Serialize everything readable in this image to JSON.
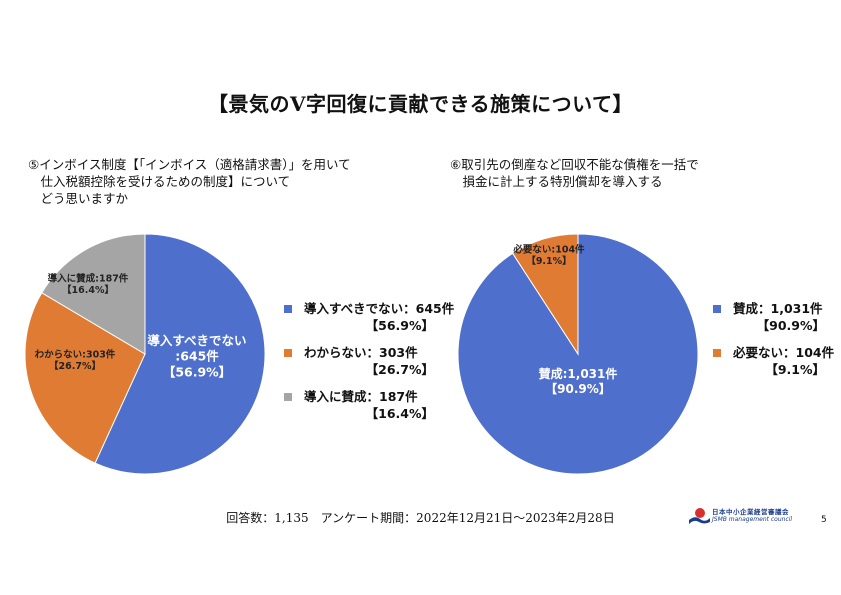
{
  "title": "【景気のV字回復に貢献できる施策について】",
  "q1": "⑤インボイス制度【「インボイス（適格請求書）」を用いて\n　仕入税額控除を受けるための制度】について\n　どう思いますか",
  "q2": "⑥取引先の倒産など回収不能な債権を一括で\n　損金に計上する特別償却を導入する",
  "footer": "回答数：1,135　アンケート期間：2022年12月21日～2023年2月28日",
  "logo": {
    "jp": "日本中小企業経営審議会",
    "en": "JSMB management council"
  },
  "page_number": "5",
  "chart_data": [
    {
      "type": "pie",
      "slices": [
        {
          "label": "導入すべきでない",
          "value": 645,
          "value_text": "645件",
          "percent": "【56.9%】",
          "color": "#4f6fcc"
        },
        {
          "label": "わからない",
          "value": 303,
          "value_text": "303件",
          "percent": "【26.7%】",
          "color": "#e07b33"
        },
        {
          "label": "導入に賛成",
          "value": 187,
          "value_text": "187件",
          "percent": "【16.4%】",
          "color": "#a5a5a5"
        }
      ],
      "data_labels": [
        {
          "line1": "導入すべきでない",
          "line2": ":645件",
          "line3": "【56.9%】"
        },
        {
          "line1": "わからない:303件",
          "line2": "【26.7%】"
        },
        {
          "line1": "導入に賛成:187件",
          "line2": "【16.4%】"
        }
      ],
      "legend": [
        {
          "text": "導入すべきでない：645件",
          "percent": "【56.9%】"
        },
        {
          "text": "わからない：303件",
          "percent": "【26.7%】"
        },
        {
          "text": "導入に賛成：187件",
          "percent": "【16.4%】"
        }
      ],
      "legend_position": "right"
    },
    {
      "type": "pie",
      "slices": [
        {
          "label": "賛成",
          "value": 1031,
          "value_text": "1,031件",
          "percent": "【90.9%】",
          "color": "#4f6fcc"
        },
        {
          "label": "必要ない",
          "value": 104,
          "value_text": "104件",
          "percent": "【9.1%】",
          "color": "#e07b33"
        }
      ],
      "data_labels": [
        {
          "line1": "賛成:1,031件",
          "line2": "【90.9%】"
        },
        {
          "line1": "必要ない:104件",
          "line2": "【9.1%】"
        }
      ],
      "legend": [
        {
          "text": "賛成：1,031件",
          "percent": "【90.9%】"
        },
        {
          "text": "必要ない：104件",
          "percent": "【9.1%】"
        }
      ],
      "legend_position": "right"
    }
  ]
}
